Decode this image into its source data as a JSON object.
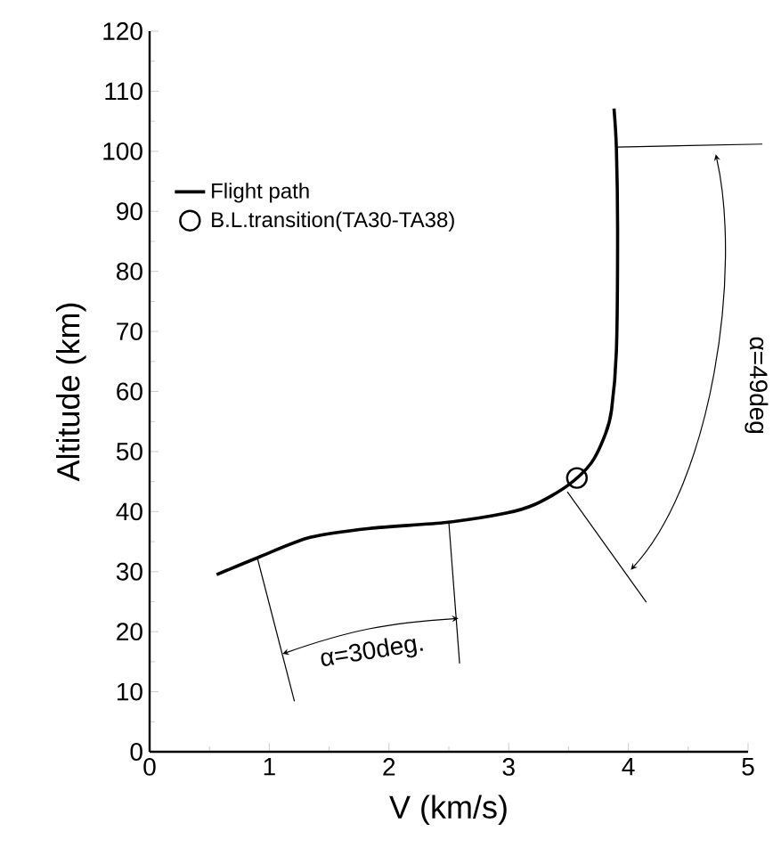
{
  "chart_data": {
    "type": "line",
    "xlabel": "V (km/s)",
    "ylabel": "Altitude (km)",
    "xlim": [
      0,
      5
    ],
    "ylim": [
      0,
      120
    ],
    "xticks": [
      0,
      1,
      2,
      3,
      4,
      5
    ],
    "yticks": [
      0,
      10,
      20,
      30,
      40,
      50,
      60,
      70,
      80,
      90,
      100,
      110,
      120
    ],
    "legend": "top left",
    "annotations": [
      "α=30deg.",
      "α=49deg"
    ],
    "series": [
      {
        "name": "Flight path",
        "color": "#000000",
        "x": [
          0.56,
          0.9,
          1.34,
          1.84,
          2.48,
          2.97,
          3.22,
          3.49,
          3.69,
          3.81,
          3.86,
          3.9,
          3.91,
          3.9,
          3.88
        ],
        "values": [
          29.5,
          32.3,
          35.7,
          37.2,
          38.2,
          39.7,
          41.2,
          44.3,
          48.1,
          53,
          57,
          66.8,
          86.6,
          100.4,
          107.1
        ]
      },
      {
        "name": "B.L.transition(TA30-TA38)",
        "type": "scatter",
        "marker": "circle",
        "color": "#000000",
        "x": [
          3.57
        ],
        "values": [
          45.6
        ]
      }
    ]
  }
}
